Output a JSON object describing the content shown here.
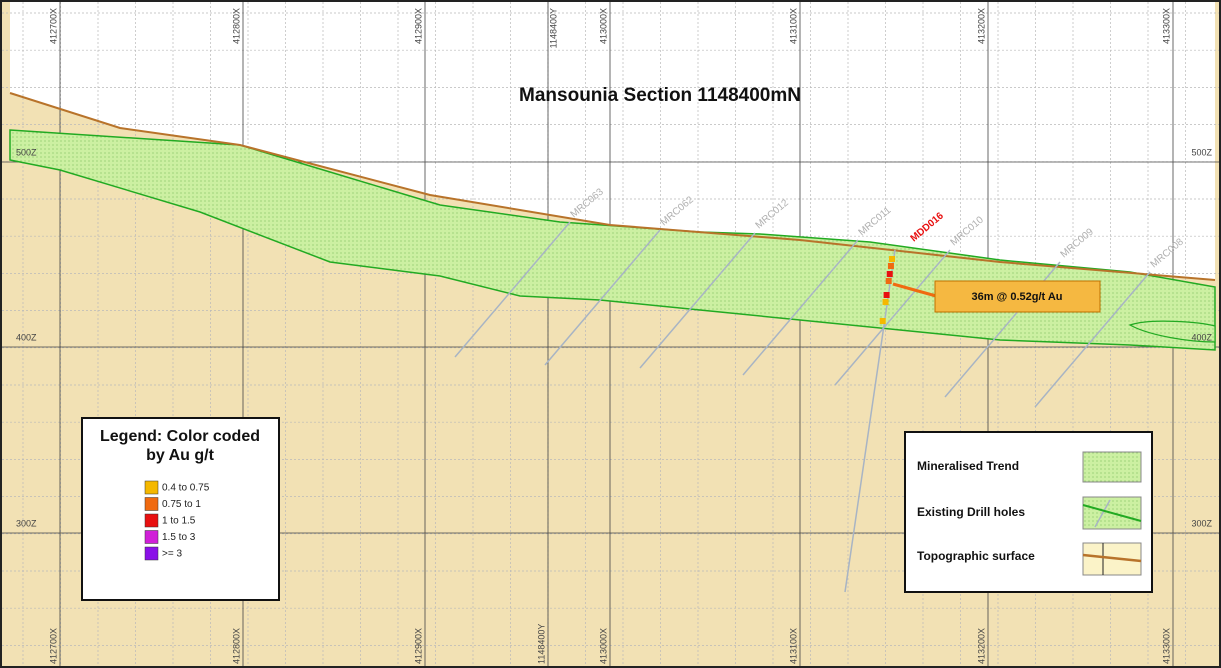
{
  "title": "Mansounia Section 1148400mN",
  "grid": {
    "eastings": [
      "412700X",
      "412800X",
      "412900X",
      "413000X",
      "413100X",
      "413200X",
      "413300X"
    ],
    "northing": "1148400Y",
    "elevations": [
      "500Z",
      "400Z",
      "300Z"
    ]
  },
  "drill_holes": [
    "MRC063",
    "MRC062",
    "MRC012",
    "MRC011",
    "MRC010",
    "MRC009",
    "MRC008"
  ],
  "highlight_hole": "MDD016",
  "intercept": "36m @ 0.52g/t Au",
  "au_legend": {
    "title_lines": [
      "Legend: Color coded",
      "by Au g/t"
    ],
    "items": [
      {
        "label": "0.4 to 0.75",
        "color": "#f5b800"
      },
      {
        "label": "0.75 to 1",
        "color": "#f06a10"
      },
      {
        "label": "1 to 1.5",
        "color": "#e81010"
      },
      {
        "label": "1.5 to 3",
        "color": "#d020d8"
      },
      {
        "label": ">= 3",
        "color": "#8a10e8"
      }
    ]
  },
  "key": [
    "Mineralised Trend",
    "Existing Drill holes",
    "Topographic surface"
  ]
}
